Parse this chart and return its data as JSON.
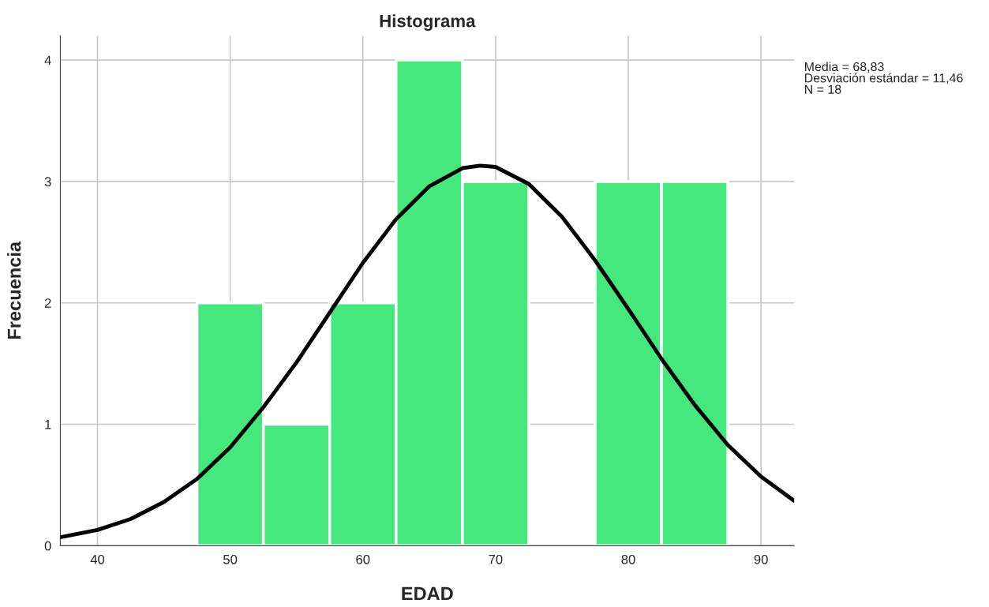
{
  "chart_data": {
    "type": "histogram",
    "title": "Histograma",
    "xlabel": "EDAD",
    "ylabel": "Frecuencia",
    "bins": [
      47.5,
      52.5,
      57.5,
      62.5,
      67.5,
      72.5,
      77.5,
      82.5,
      87.5
    ],
    "values": [
      2,
      1,
      2,
      4,
      3,
      0,
      3,
      3
    ],
    "color": "#44e87d",
    "series": [
      {
        "type": "line",
        "color": "#000000",
        "x": [
          37.2,
          40,
          42.5,
          45,
          47.5,
          50,
          52.5,
          55,
          57.5,
          60,
          62.5,
          65,
          67.5,
          68.83,
          70,
          72.5,
          75,
          77.5,
          80,
          82.5,
          85,
          87.5,
          90,
          92.5
        ],
        "values": [
          0.07,
          0.13,
          0.22,
          0.36,
          0.55,
          0.81,
          1.14,
          1.51,
          1.92,
          2.33,
          2.69,
          2.96,
          3.11,
          3.13,
          3.12,
          2.98,
          2.71,
          2.35,
          1.95,
          1.54,
          1.16,
          0.83,
          0.57,
          0.37
        ]
      }
    ],
    "xlim": [
      37.2,
      92.5
    ],
    "xticks": [
      40,
      50,
      60,
      70,
      80,
      90
    ],
    "ylim": [
      0,
      4.2
    ],
    "yticks": [
      0,
      1,
      2,
      3,
      4
    ],
    "grid": true,
    "annotations": [
      "Media = 68,83\nDesviación estándar = 11,46\nN = 18"
    ]
  }
}
